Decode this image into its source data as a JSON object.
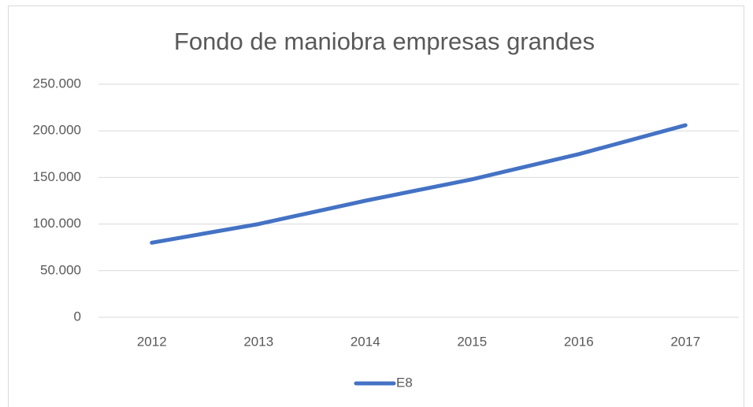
{
  "chart_data": {
    "type": "line",
    "title": "Fondo de maniobra empresas grandes",
    "categories": [
      "2012",
      "2013",
      "2014",
      "2015",
      "2016",
      "2017"
    ],
    "series": [
      {
        "name": "E8",
        "color": "#4472c4",
        "values": [
          80000,
          100000,
          125000,
          148000,
          175000,
          206000
        ]
      }
    ],
    "ylim": [
      0,
      250000
    ],
    "yticks": [
      0,
      {
        "value": 50000,
        "label": "50.000"
      },
      {
        "value": 100000,
        "label": "100.000"
      },
      {
        "value": 150000,
        "label": "150.000"
      },
      {
        "value": 200000,
        "label": "200.000"
      },
      {
        "value": 250000,
        "label": "250.000"
      }
    ],
    "grid": true,
    "legend": "bottom"
  }
}
